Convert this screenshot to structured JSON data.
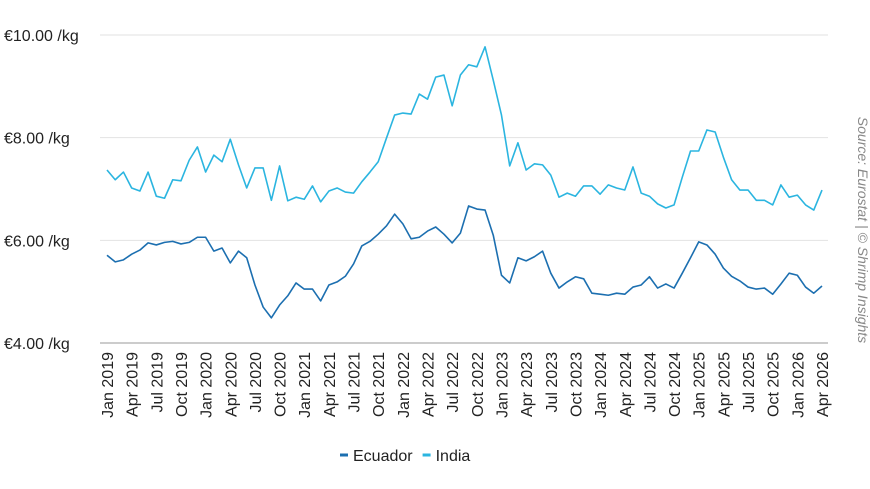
{
  "chart_data": {
    "type": "line",
    "source": "Source: Eurostat | © Shrimp Insights",
    "categories": [
      "Jan 2019",
      null,
      null,
      "Apr 2019",
      null,
      null,
      "Jul 2019",
      null,
      null,
      "Oct 2019",
      null,
      null,
      "Jan 2020",
      null,
      null,
      "Apr 2020",
      null,
      null,
      "Jul 2020",
      null,
      null,
      "Oct 2020",
      null,
      null,
      "Jan 2021",
      null,
      null,
      "Apr 2021",
      null,
      null,
      "Jul 2021",
      null,
      null,
      "Oct 2021",
      null,
      null,
      "Jan 2022",
      null,
      null,
      "Apr 2022",
      null,
      null,
      "Jul 2022",
      null,
      null,
      "Oct 2022",
      null,
      null,
      "Jan 2023",
      null,
      null,
      "Apr 2023",
      null,
      null,
      "Jul 2023",
      null,
      null,
      "Oct 2023",
      null,
      null,
      "Jan 2024",
      null,
      null,
      "Apr 2024",
      null,
      null,
      "Jul 2024",
      null,
      null,
      "Oct 2024",
      null,
      null,
      "Jan 2025",
      null,
      null,
      "Apr 2025",
      null,
      null,
      "Jul 2025",
      null,
      null,
      "Oct 2025",
      null,
      null,
      "Jan 2026",
      null,
      null,
      "Apr 2026"
    ],
    "series": [
      {
        "name": "Ecuador",
        "color": "#1c6fb0",
        "values": [
          5.71,
          5.58,
          5.62,
          5.73,
          5.81,
          5.95,
          5.91,
          5.96,
          5.98,
          5.93,
          5.96,
          6.06,
          6.06,
          5.79,
          5.85,
          5.56,
          5.79,
          5.66,
          5.13,
          4.7,
          4.49,
          4.74,
          4.92,
          5.17,
          5.05,
          5.05,
          4.82,
          5.13,
          5.19,
          5.3,
          5.54,
          5.89,
          5.98,
          6.12,
          6.28,
          6.51,
          6.32,
          6.03,
          6.06,
          6.18,
          6.26,
          6.12,
          5.95,
          6.14,
          6.67,
          6.61,
          6.59,
          6.1,
          5.32,
          5.17,
          5.66,
          5.6,
          5.68,
          5.79,
          5.36,
          5.07,
          5.19,
          5.29,
          5.25,
          4.97,
          4.95,
          4.93,
          4.97,
          4.95,
          5.09,
          5.13,
          5.29,
          5.07,
          5.15,
          5.07,
          5.36,
          5.66,
          5.97,
          5.91,
          5.73,
          5.46,
          5.3,
          5.21,
          5.09,
          5.05,
          5.07,
          4.95,
          5.15,
          5.36,
          5.32,
          5.09,
          4.97,
          5.11
        ]
      },
      {
        "name": "India",
        "color": "#2bb5e0",
        "values": [
          7.37,
          7.18,
          7.33,
          7.02,
          6.96,
          7.33,
          6.86,
          6.82,
          7.18,
          7.16,
          7.56,
          7.82,
          7.33,
          7.66,
          7.53,
          7.97,
          7.47,
          7.02,
          7.41,
          7.41,
          6.78,
          7.45,
          6.77,
          6.84,
          6.8,
          7.06,
          6.75,
          6.96,
          7.02,
          6.94,
          6.92,
          7.14,
          7.33,
          7.53,
          7.99,
          8.44,
          8.48,
          8.46,
          8.85,
          8.75,
          9.18,
          9.22,
          8.62,
          9.22,
          9.42,
          9.38,
          9.77,
          9.12,
          8.44,
          7.45,
          7.9,
          7.37,
          7.49,
          7.47,
          7.27,
          6.84,
          6.92,
          6.86,
          7.06,
          7.06,
          6.9,
          7.08,
          7.02,
          6.98,
          7.43,
          6.92,
          6.86,
          6.71,
          6.63,
          6.69,
          7.23,
          7.74,
          7.74,
          8.15,
          8.11,
          7.62,
          7.18,
          6.98,
          6.98,
          6.78,
          6.78,
          6.69,
          7.08,
          6.84,
          6.88,
          6.69,
          6.59,
          6.98
        ]
      }
    ],
    "ylim": [
      4,
      10
    ],
    "yticks": [
      {
        "value": 4,
        "label": "€4.00 /kg"
      },
      {
        "value": 6,
        "label": "€6.00 /kg"
      },
      {
        "value": 8,
        "label": "€8.00 /kg"
      },
      {
        "value": 10,
        "label": "€10.00 /kg"
      }
    ],
    "grid": true
  }
}
